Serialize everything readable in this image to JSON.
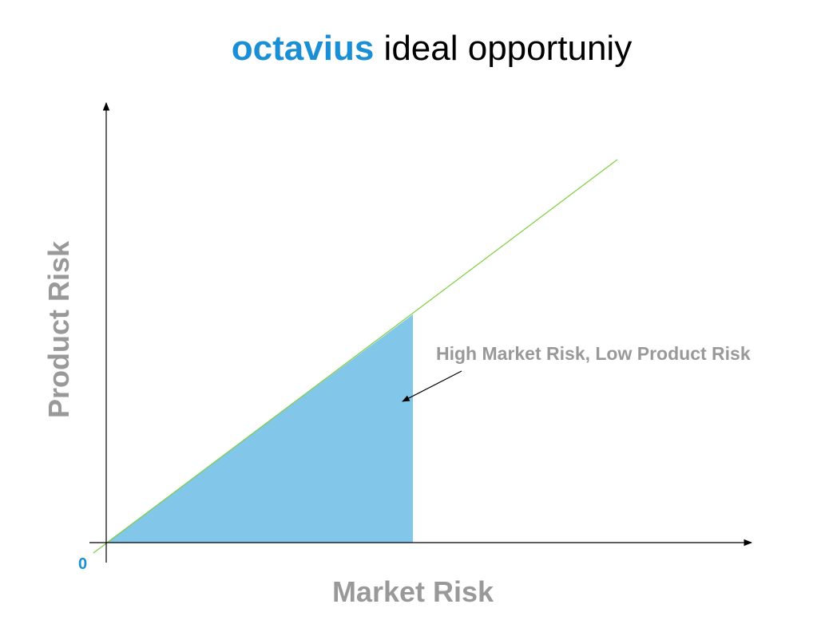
{
  "title": {
    "brand": "octavius",
    "rest": " ideal opportuniy"
  },
  "axes": {
    "x_label": "Market Risk",
    "y_label": "Product Risk",
    "origin_label": "0"
  },
  "annotation": {
    "text": "High Market Risk, Low Product Risk"
  },
  "colors": {
    "brand": "#1a8fd6",
    "axis_label": "#999999",
    "region_fill": "#82c6e9",
    "diagonal_line": "#7ccf3c",
    "axis": "#000000",
    "origin_label": "#1a8fd6"
  }
}
